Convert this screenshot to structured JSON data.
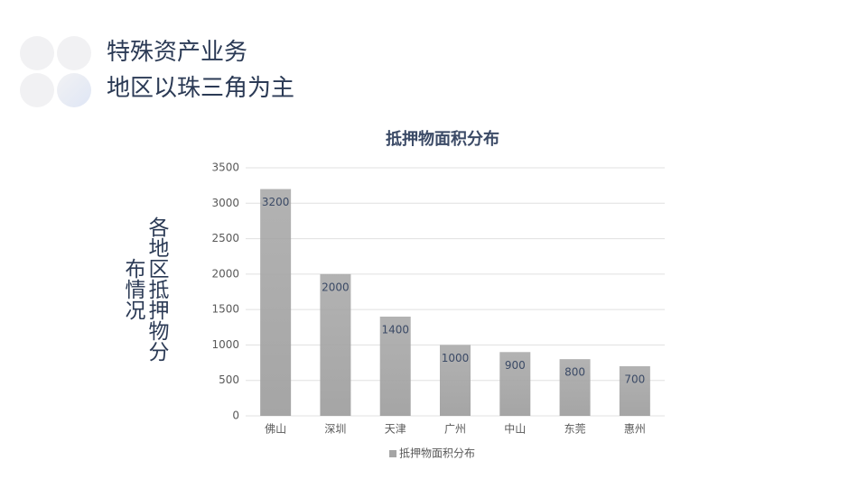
{
  "header": {
    "lines": [
      "特殊资产业务",
      "地区以珠三角为主"
    ]
  },
  "side_label": "各地区抵押物分布情况",
  "chart_data": {
    "type": "bar",
    "title": "抵押物面积分布",
    "categories": [
      "佛山",
      "深圳",
      "天津",
      "广州",
      "中山",
      "东莞",
      "惠州"
    ],
    "series": [
      {
        "name": "抵押物面积分布",
        "color": "#a5a5a5",
        "values": [
          3200,
          2000,
          1400,
          1000,
          900,
          800,
          700
        ]
      }
    ],
    "ylim": [
      0,
      3500
    ],
    "yticks": [
      0,
      500,
      1000,
      1500,
      2000,
      2500,
      3000,
      3500
    ],
    "grid": true,
    "legend": "bottom"
  }
}
